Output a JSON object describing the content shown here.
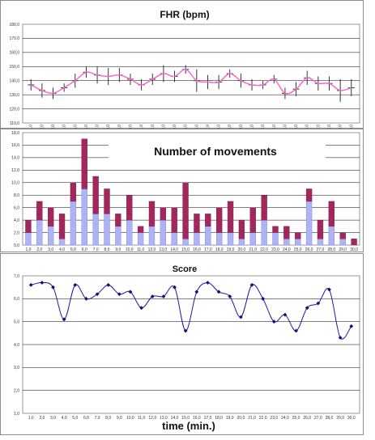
{
  "chart_data": [
    {
      "type": "line",
      "title": "FHR (bpm)",
      "xlabel": "",
      "ylabel": "",
      "ylim": [
        110,
        180
      ],
      "yticks": [
        "110,0",
        "120,0",
        "130,0",
        "140,0",
        "150,0",
        "160,0",
        "170,0",
        "180,0"
      ],
      "grid": true,
      "legend": "none",
      "x": [
        1,
        2,
        3,
        4,
        5,
        6,
        7,
        8,
        9,
        10,
        11,
        12,
        13,
        14,
        15,
        16,
        17,
        18,
        19,
        20,
        21,
        22,
        23,
        24,
        25,
        26,
        27,
        28,
        29,
        30
      ],
      "xticks": [
        "1,0",
        "2,0",
        "3,0",
        "4,0",
        "5,0",
        "6,0",
        "7,0",
        "8,0",
        "9,0",
        "10,0",
        "11,0",
        "12,0",
        "13,0",
        "14,0",
        "15,0",
        "16,0",
        "17,0",
        "18,0",
        "19,0",
        "20,0",
        "21,0",
        "22,0",
        "23,0",
        "24,0",
        "25,0",
        "26,0",
        "27,0",
        "28,0",
        "29,0",
        "30,0"
      ],
      "series": [
        {
          "name": "",
          "color": "#ff5fd0",
          "values": [
            137,
            133,
            131,
            135,
            140,
            146,
            144,
            143,
            144,
            141,
            137,
            141,
            145,
            143,
            148,
            140,
            139,
            139,
            145,
            140,
            137,
            137,
            141,
            131,
            134,
            142,
            138,
            138,
            133,
            135
          ],
          "error": [
            4,
            5,
            4,
            3,
            5,
            4,
            6,
            6,
            5,
            4,
            4,
            4,
            6,
            4,
            3,
            8,
            5,
            5,
            3,
            5,
            4,
            3,
            3,
            4,
            5,
            5,
            5,
            5,
            8,
            6
          ]
        }
      ]
    },
    {
      "type": "bar",
      "stacked": true,
      "title": "Number of movements",
      "xlabel": "",
      "ylabel": "",
      "ylim": [
        0,
        18
      ],
      "yticks": [
        "0,0",
        "2,0",
        "4,0",
        "6,0",
        "8,0",
        "10,0",
        "12,0",
        "14,0",
        "16,0",
        "18,0"
      ],
      "grid": true,
      "legend": "none",
      "categories": [
        "1,0",
        "2,0",
        "3,0",
        "4,0",
        "5,0",
        "6,0",
        "7,0",
        "8,0",
        "9,0",
        "10,0",
        "11,0",
        "12,0",
        "13,0",
        "14,0",
        "15,0",
        "16,0",
        "17,0",
        "18,0",
        "19,0",
        "20,0",
        "21,0",
        "22,0",
        "23,0",
        "24,0",
        "25,0",
        "26,0",
        "27,0",
        "28,0",
        "29,0",
        "30,0"
      ],
      "series": [
        {
          "name": "",
          "color": "#aeb3f5",
          "values": [
            2,
            4,
            3,
            1,
            7,
            9,
            5,
            5,
            3,
            4,
            2,
            3,
            4,
            2,
            1,
            2,
            3,
            2,
            2,
            1,
            2,
            4,
            2,
            1,
            1,
            7,
            1,
            3,
            1,
            0
          ]
        },
        {
          "name": "",
          "color": "#a1275c",
          "values": [
            2,
            3,
            3,
            4,
            3,
            8,
            6,
            4,
            2,
            4,
            1,
            4,
            2,
            4,
            9,
            3,
            2,
            4,
            5,
            3,
            4,
            4,
            1,
            2,
            1,
            2,
            3,
            4,
            1,
            1
          ]
        }
      ]
    },
    {
      "type": "line",
      "title": "Score",
      "xlabel": "time (min.)",
      "ylabel": "",
      "ylim": [
        1,
        7
      ],
      "yticks": [
        "1,0",
        "2,0",
        "3,0",
        "4,0",
        "5,0",
        "6,0",
        "7,0"
      ],
      "grid": true,
      "legend": "none",
      "x": [
        1,
        2,
        3,
        4,
        5,
        6,
        7,
        8,
        9,
        10,
        11,
        12,
        13,
        14,
        15,
        16,
        17,
        18,
        19,
        20,
        21,
        22,
        23,
        24,
        25,
        26,
        27,
        28,
        29,
        30
      ],
      "xticks": [
        "1,0",
        "2,0",
        "3,0",
        "4,0",
        "5,0",
        "6,0",
        "7,0",
        "8,0",
        "9,0",
        "10,0",
        "11,0",
        "12,0",
        "13,0",
        "14,0",
        "15,0",
        "16,0",
        "17,0",
        "18,0",
        "19,0",
        "20,0",
        "21,0",
        "22,0",
        "23,0",
        "24,0",
        "25,0",
        "26,0",
        "27,0",
        "28,0",
        "29,0",
        "30,0"
      ],
      "series": [
        {
          "name": "",
          "color": "#1a1aa0",
          "values": [
            6.6,
            6.7,
            6.5,
            5.1,
            6.6,
            6.0,
            6.2,
            6.6,
            6.2,
            6.3,
            5.6,
            6.1,
            6.1,
            6.5,
            4.6,
            6.3,
            6.7,
            6.3,
            6.1,
            5.2,
            6.6,
            6.0,
            5.0,
            5.3,
            4.6,
            5.6,
            5.8,
            6.4,
            4.3,
            4.8
          ]
        }
      ]
    }
  ]
}
